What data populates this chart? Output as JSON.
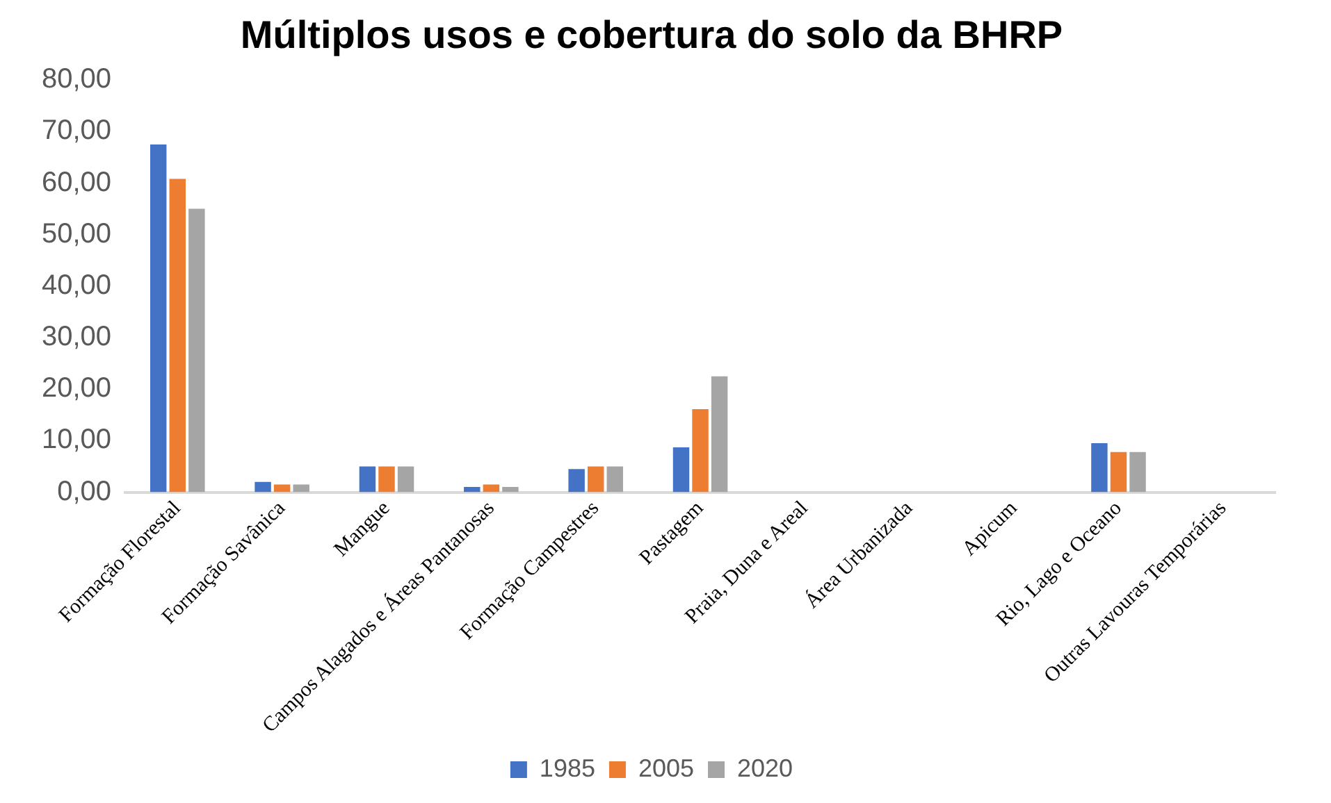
{
  "chart_data": {
    "type": "bar",
    "title": "Múltiplos usos e cobertura do solo da BHRP",
    "categories": [
      "Formação Florestal",
      "Formação Savânica",
      "Mangue",
      "Campos Alagados e Áreas Pantanosas",
      "Formação Campestres",
      "Pastagem",
      "Praia, Duna e Areal",
      "Área Urbanizada",
      "Apicum",
      "Rio, Lago e Oceano",
      "Outras Lavouras Temporárias"
    ],
    "series": [
      {
        "name": "1985",
        "color": "#4472c4",
        "values": [
          67.5,
          2,
          5,
          1,
          4.5,
          8.7,
          0,
          0,
          0,
          9.5,
          0
        ]
      },
      {
        "name": "2005",
        "color": "#ed7d31",
        "values": [
          60.8,
          1.5,
          5,
          1.5,
          5,
          16.1,
          0,
          0,
          0,
          7.8,
          0
        ]
      },
      {
        "name": "2020",
        "color": "#a5a5a5",
        "values": [
          55,
          1.5,
          5,
          1,
          5,
          22.5,
          0,
          0,
          0,
          7.8,
          0
        ]
      }
    ],
    "ylim": [
      0,
      80
    ],
    "yticks": [
      {
        "value": 0,
        "label": "0,00"
      },
      {
        "value": 10,
        "label": "10,00"
      },
      {
        "value": 20,
        "label": "20,00"
      },
      {
        "value": 30,
        "label": "30,00"
      },
      {
        "value": 40,
        "label": "40,00"
      },
      {
        "value": 50,
        "label": "50,00"
      },
      {
        "value": 60,
        "label": "60,00"
      },
      {
        "value": 70,
        "label": "70,00"
      },
      {
        "value": 80,
        "label": "80,00"
      }
    ],
    "grid": false,
    "legend": "bottom"
  }
}
